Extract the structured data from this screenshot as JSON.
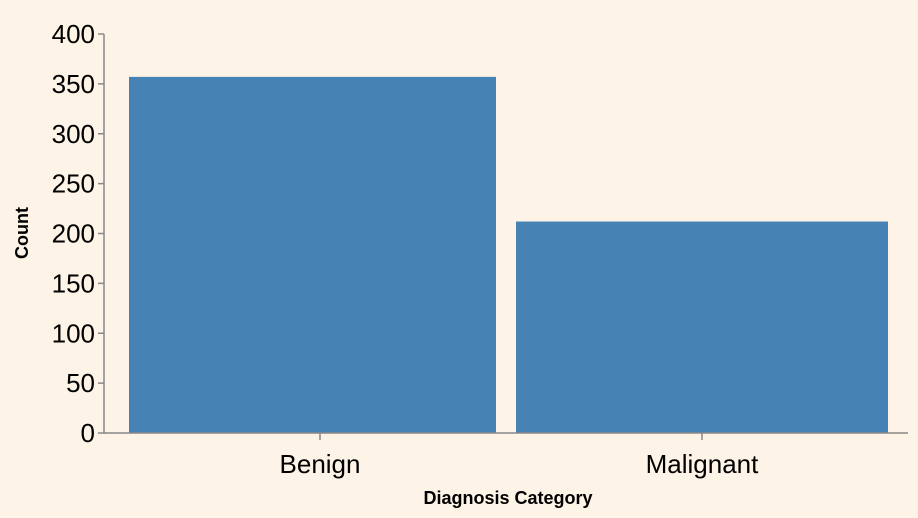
{
  "chart_data": {
    "type": "bar",
    "categories": [
      "Benign",
      "Malignant"
    ],
    "values": [
      357,
      212
    ],
    "xlabel": "Diagnosis Category",
    "ylabel": "Count",
    "ylim": [
      0,
      400
    ],
    "yticks": [
      0,
      50,
      100,
      150,
      200,
      250,
      300,
      350,
      400
    ],
    "grid": false,
    "bar_color": "#4682b4",
    "axis_color": "#888888",
    "background": "#fdf3e6"
  }
}
